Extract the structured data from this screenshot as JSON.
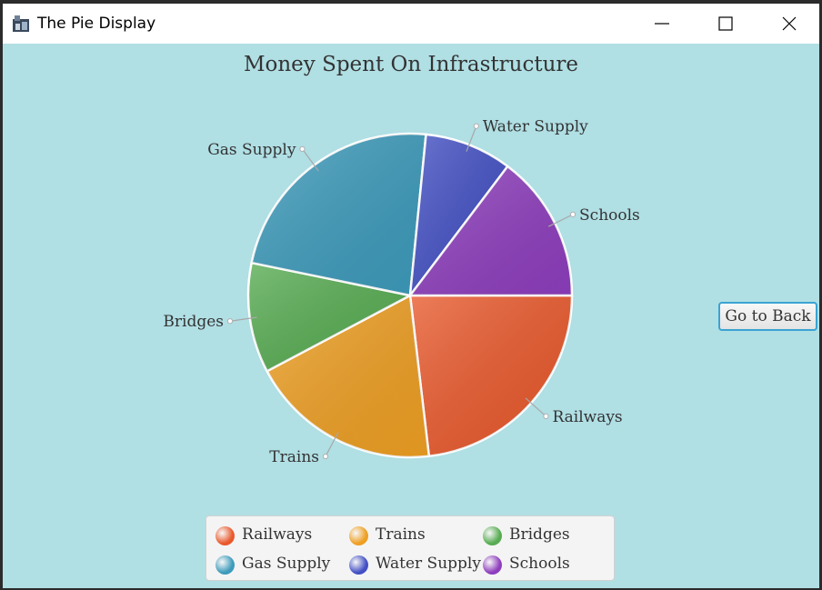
{
  "window": {
    "title": "The Pie Display",
    "icon": "app-icon",
    "controls": [
      "minimize-icon",
      "maximize-icon",
      "close-icon"
    ]
  },
  "back_button": {
    "label": "Go to Back"
  },
  "chart_data": {
    "type": "pie",
    "title": "Money Spent On Infrastructure",
    "legend_position": "bottom",
    "slices": [
      {
        "name": "Railways",
        "value": 23.6,
        "color": "#e9592c"
      },
      {
        "name": "Trains",
        "value": 19.5,
        "color": "#ee9f23"
      },
      {
        "name": "Bridges",
        "value": 11.2,
        "color": "#57ac52"
      },
      {
        "name": "Gas Supply",
        "value": 23.8,
        "color": "#3d9bbb"
      },
      {
        "name": "Water Supply",
        "value": 8.9,
        "color": "#4350c4"
      },
      {
        "name": "Schools",
        "value": 15.0,
        "color": "#8e3ebd"
      }
    ]
  }
}
